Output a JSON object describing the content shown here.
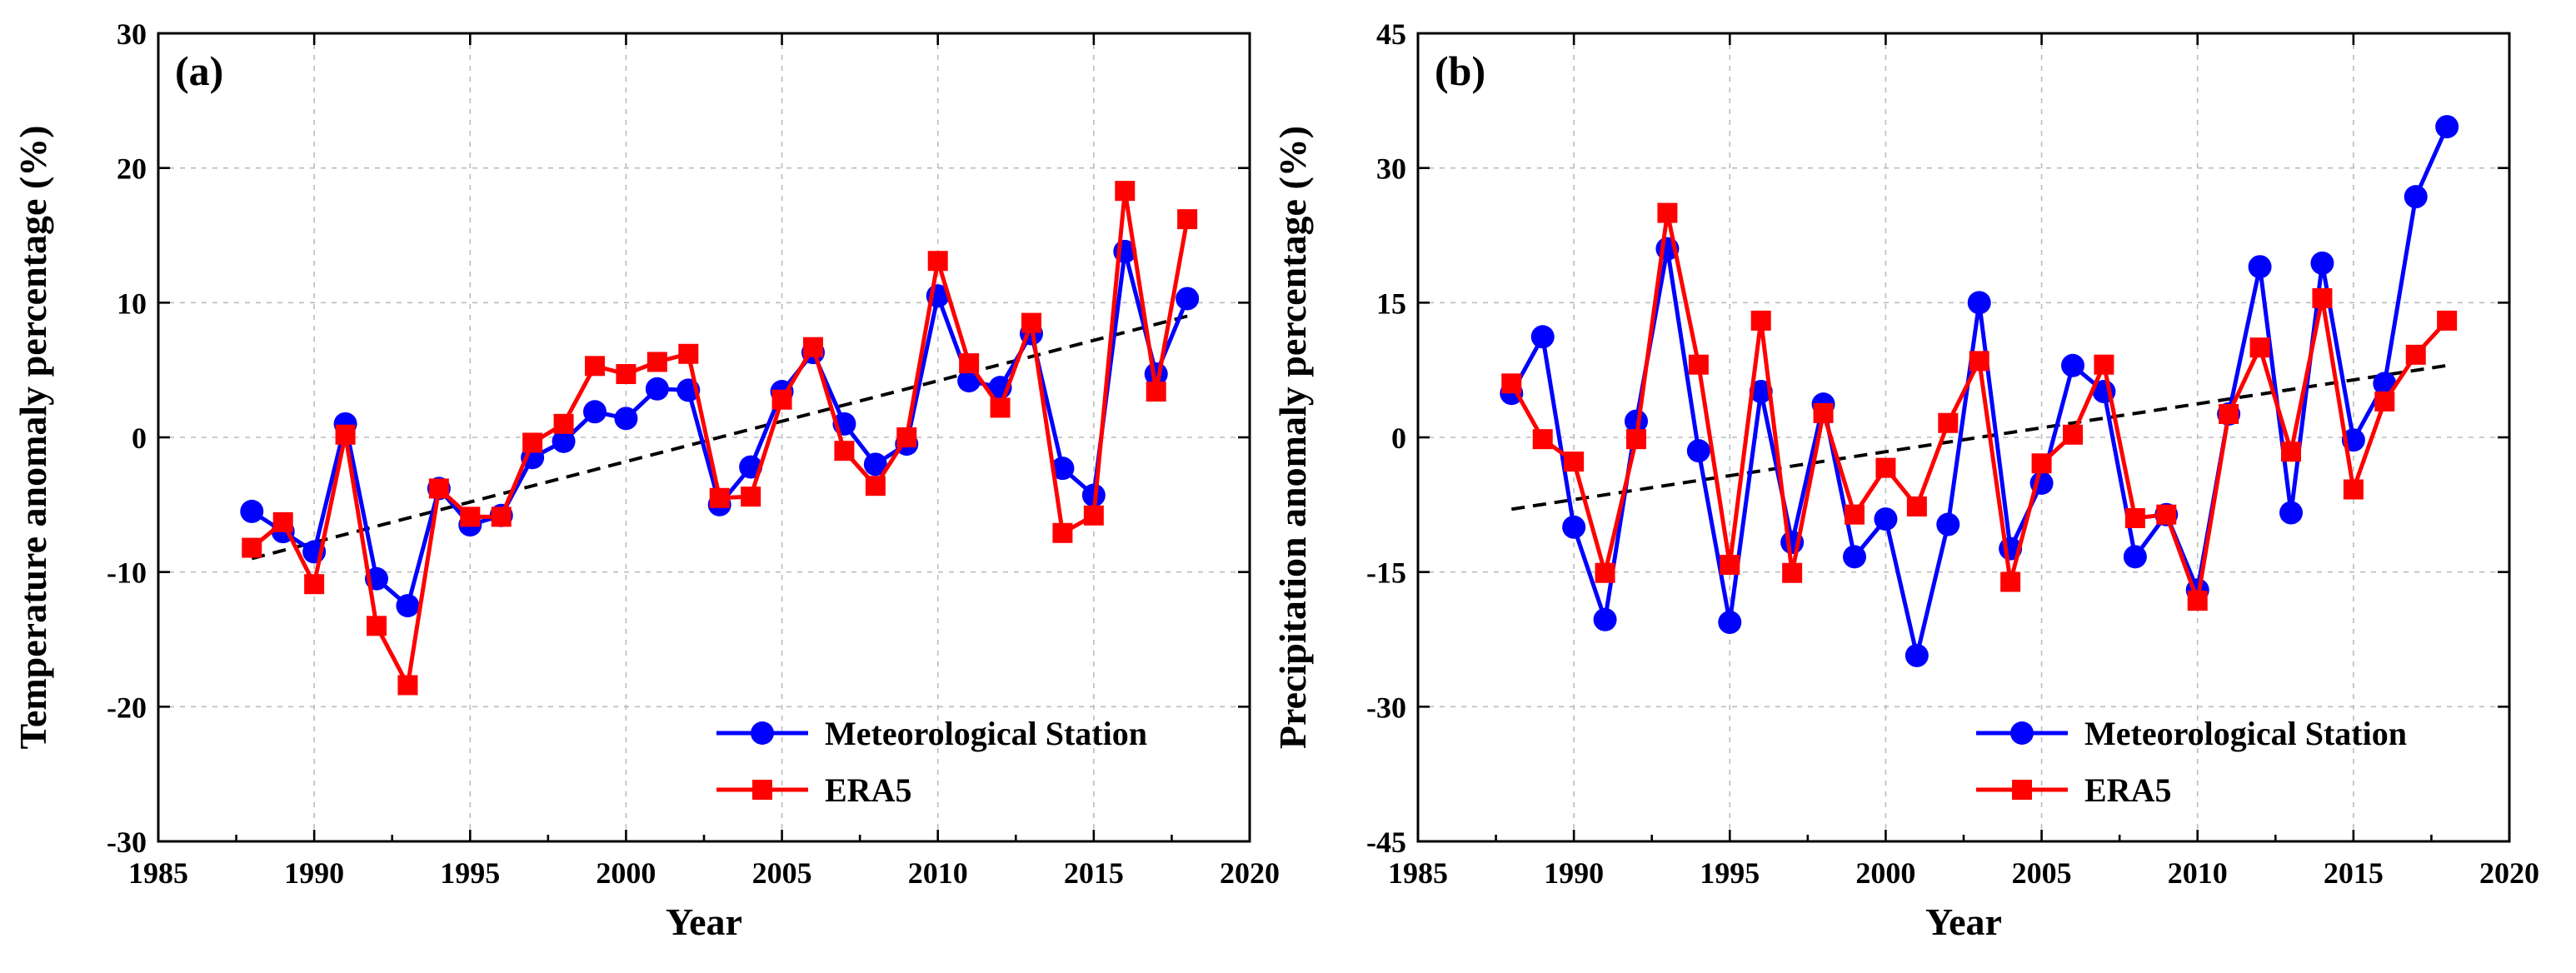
{
  "chart_data": [
    {
      "type": "line",
      "panel_label": "(a)",
      "xlabel": "Year",
      "ylabel": "Temperature anomaly percentage (%)",
      "xlim": [
        1985,
        2020
      ],
      "ylim": [
        -30,
        30
      ],
      "xticks": [
        1985,
        1990,
        1995,
        2000,
        2005,
        2010,
        2015,
        2020
      ],
      "yticks": [
        -30,
        -20,
        -10,
        0,
        10,
        20,
        30
      ],
      "grid": true,
      "legend_position": "bottom-right",
      "x": [
        1988,
        1989,
        1990,
        1991,
        1992,
        1993,
        1994,
        1995,
        1996,
        1997,
        1998,
        1999,
        2000,
        2001,
        2002,
        2003,
        2004,
        2005,
        2006,
        2007,
        2008,
        2009,
        2010,
        2011,
        2012,
        2013,
        2014,
        2015,
        2016,
        2017,
        2018
      ],
      "series": [
        {
          "name": "Meteorological Station",
          "color": "#0000ff",
          "marker": "circle",
          "values": [
            -5.5,
            -7.0,
            -8.5,
            1.0,
            -10.5,
            -12.5,
            -3.8,
            -6.5,
            -5.8,
            -1.5,
            -0.3,
            1.9,
            1.4,
            3.6,
            3.5,
            -5.0,
            -2.2,
            3.4,
            6.3,
            1.0,
            -2.0,
            -0.5,
            10.5,
            4.2,
            3.7,
            7.7,
            -2.3,
            -4.3,
            13.8,
            4.7,
            10.3
          ]
        },
        {
          "name": "ERA5",
          "color": "#ff0000",
          "marker": "square",
          "values": [
            -8.2,
            -6.3,
            -10.9,
            0.2,
            -14.0,
            -18.4,
            -3.8,
            -5.9,
            -5.9,
            -0.4,
            1.0,
            5.3,
            4.7,
            5.6,
            6.2,
            -4.5,
            -4.4,
            2.8,
            6.7,
            -1.0,
            -3.6,
            0.0,
            13.1,
            5.5,
            2.2,
            8.5,
            -7.1,
            -5.8,
            18.3,
            3.4,
            16.2
          ]
        }
      ],
      "trend": {
        "x": [
          1988,
          2018
        ],
        "y": [
          -9.0,
          9.0
        ]
      }
    },
    {
      "type": "line",
      "panel_label": "(b)",
      "xlabel": "Year",
      "ylabel": "Precipitation anomaly percentage (%)",
      "xlim": [
        1985,
        2020
      ],
      "ylim": [
        -45,
        45
      ],
      "xticks": [
        1985,
        1990,
        1995,
        2000,
        2005,
        2010,
        2015,
        2020
      ],
      "yticks": [
        -45,
        -30,
        -15,
        0,
        15,
        30,
        45
      ],
      "grid": true,
      "legend_position": "bottom-right",
      "x": [
        1988,
        1989,
        1990,
        1991,
        1992,
        1993,
        1994,
        1995,
        1996,
        1997,
        1998,
        1999,
        2000,
        2001,
        2002,
        2003,
        2004,
        2005,
        2006,
        2007,
        2008,
        2009,
        2010,
        2011,
        2012,
        2013,
        2014,
        2015,
        2016,
        2017,
        2018
      ],
      "series": [
        {
          "name": "Meteorological Station",
          "color": "#0000ff",
          "marker": "circle",
          "values": [
            4.9,
            11.2,
            -10.0,
            -20.3,
            1.8,
            21.0,
            -1.5,
            -20.6,
            5.1,
            -11.7,
            3.7,
            -13.3,
            -9.1,
            -24.3,
            -9.7,
            15.0,
            -12.4,
            -5.1,
            8.0,
            5.1,
            -13.3,
            -8.6,
            -17.0,
            2.6,
            19.0,
            -8.4,
            19.4,
            -0.3,
            6.0,
            26.8,
            34.6
          ]
        },
        {
          "name": "ERA5",
          "color": "#ff0000",
          "marker": "square",
          "values": [
            6.0,
            -0.2,
            -2.7,
            -15.1,
            -0.2,
            25.0,
            8.1,
            -14.2,
            13.0,
            -15.1,
            2.7,
            -8.6,
            -3.4,
            -7.7,
            1.6,
            8.5,
            -16.1,
            -2.9,
            0.3,
            8.1,
            -9.0,
            -8.6,
            -18.2,
            2.6,
            10.0,
            -1.6,
            15.5,
            -5.8,
            4.0,
            9.2,
            13.0
          ]
        }
      ],
      "trend": {
        "x": [
          1988,
          2018
        ],
        "y": [
          -8.0,
          8.0
        ]
      }
    }
  ]
}
